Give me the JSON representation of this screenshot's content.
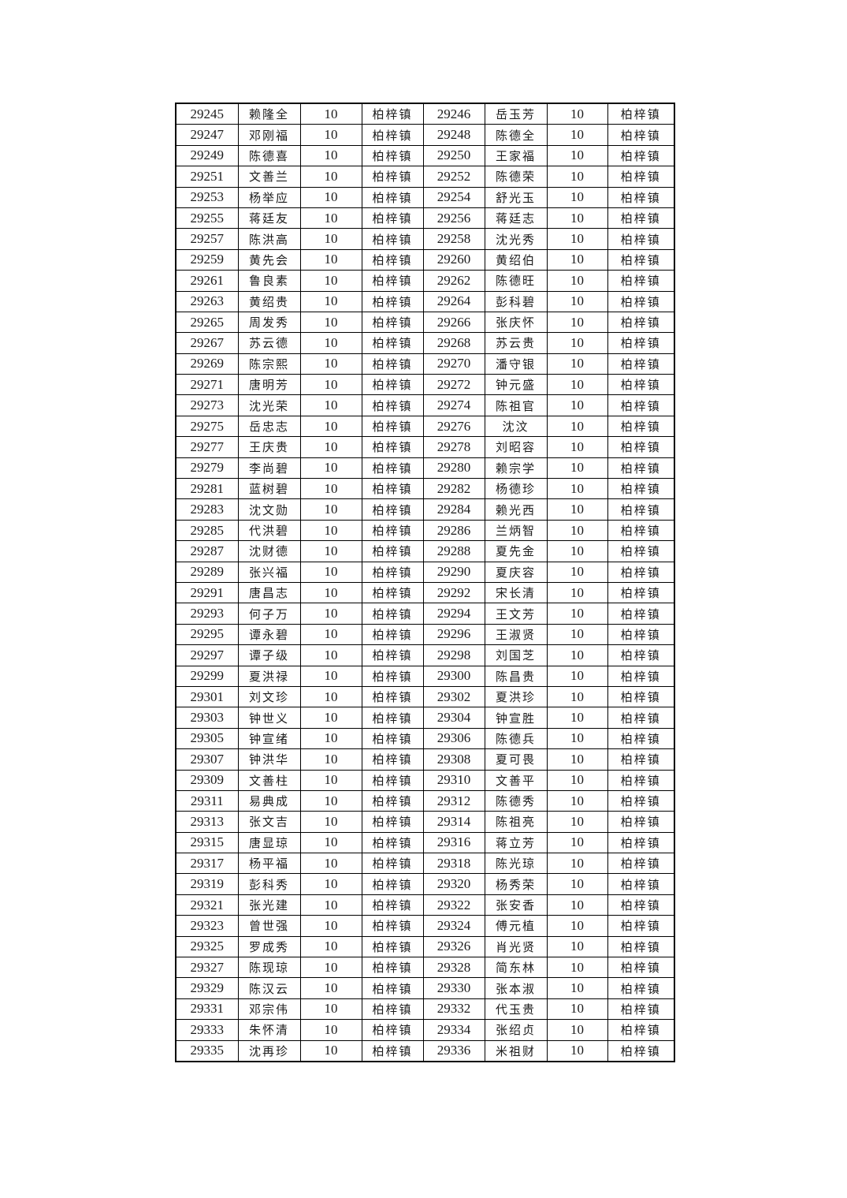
{
  "document": {
    "table": {
      "column_keys": [
        "id",
        "name",
        "amount",
        "town",
        "id",
        "name",
        "amount",
        "town"
      ],
      "rows": [
        [
          "29245",
          "赖隆全",
          "10",
          "柏梓镇",
          "29246",
          "岳玉芳",
          "10",
          "柏梓镇"
        ],
        [
          "29247",
          "邓刚福",
          "10",
          "柏梓镇",
          "29248",
          "陈德全",
          "10",
          "柏梓镇"
        ],
        [
          "29249",
          "陈德喜",
          "10",
          "柏梓镇",
          "29250",
          "王家福",
          "10",
          "柏梓镇"
        ],
        [
          "29251",
          "文善兰",
          "10",
          "柏梓镇",
          "29252",
          "陈德荣",
          "10",
          "柏梓镇"
        ],
        [
          "29253",
          "杨举应",
          "10",
          "柏梓镇",
          "29254",
          "舒光玉",
          "10",
          "柏梓镇"
        ],
        [
          "29255",
          "蒋廷友",
          "10",
          "柏梓镇",
          "29256",
          "蒋廷志",
          "10",
          "柏梓镇"
        ],
        [
          "29257",
          "陈洪高",
          "10",
          "柏梓镇",
          "29258",
          "沈光秀",
          "10",
          "柏梓镇"
        ],
        [
          "29259",
          "黄先会",
          "10",
          "柏梓镇",
          "29260",
          "黄绍伯",
          "10",
          "柏梓镇"
        ],
        [
          "29261",
          "鲁良素",
          "10",
          "柏梓镇",
          "29262",
          "陈德旺",
          "10",
          "柏梓镇"
        ],
        [
          "29263",
          "黄绍贵",
          "10",
          "柏梓镇",
          "29264",
          "彭科碧",
          "10",
          "柏梓镇"
        ],
        [
          "29265",
          "周发秀",
          "10",
          "柏梓镇",
          "29266",
          "张庆怀",
          "10",
          "柏梓镇"
        ],
        [
          "29267",
          "苏云德",
          "10",
          "柏梓镇",
          "29268",
          "苏云贵",
          "10",
          "柏梓镇"
        ],
        [
          "29269",
          "陈宗熙",
          "10",
          "柏梓镇",
          "29270",
          "潘守银",
          "10",
          "柏梓镇"
        ],
        [
          "29271",
          "唐明芳",
          "10",
          "柏梓镇",
          "29272",
          "钟元盛",
          "10",
          "柏梓镇"
        ],
        [
          "29273",
          "沈光荣",
          "10",
          "柏梓镇",
          "29274",
          "陈祖官",
          "10",
          "柏梓镇"
        ],
        [
          "29275",
          "岳忠志",
          "10",
          "柏梓镇",
          "29276",
          "沈汶",
          "10",
          "柏梓镇"
        ],
        [
          "29277",
          "王庆贵",
          "10",
          "柏梓镇",
          "29278",
          "刘昭容",
          "10",
          "柏梓镇"
        ],
        [
          "29279",
          "李尚碧",
          "10",
          "柏梓镇",
          "29280",
          "赖宗学",
          "10",
          "柏梓镇"
        ],
        [
          "29281",
          "蓝树碧",
          "10",
          "柏梓镇",
          "29282",
          "杨德珍",
          "10",
          "柏梓镇"
        ],
        [
          "29283",
          "沈文勋",
          "10",
          "柏梓镇",
          "29284",
          "赖光西",
          "10",
          "柏梓镇"
        ],
        [
          "29285",
          "代洪碧",
          "10",
          "柏梓镇",
          "29286",
          "兰炳智",
          "10",
          "柏梓镇"
        ],
        [
          "29287",
          "沈财德",
          "10",
          "柏梓镇",
          "29288",
          "夏先金",
          "10",
          "柏梓镇"
        ],
        [
          "29289",
          "张兴福",
          "10",
          "柏梓镇",
          "29290",
          "夏庆容",
          "10",
          "柏梓镇"
        ],
        [
          "29291",
          "唐昌志",
          "10",
          "柏梓镇",
          "29292",
          "宋长清",
          "10",
          "柏梓镇"
        ],
        [
          "29293",
          "何子万",
          "10",
          "柏梓镇",
          "29294",
          "王文芳",
          "10",
          "柏梓镇"
        ],
        [
          "29295",
          "谭永碧",
          "10",
          "柏梓镇",
          "29296",
          "王淑贤",
          "10",
          "柏梓镇"
        ],
        [
          "29297",
          "谭子级",
          "10",
          "柏梓镇",
          "29298",
          "刘国芝",
          "10",
          "柏梓镇"
        ],
        [
          "29299",
          "夏洪禄",
          "10",
          "柏梓镇",
          "29300",
          "陈昌贵",
          "10",
          "柏梓镇"
        ],
        [
          "29301",
          "刘文珍",
          "10",
          "柏梓镇",
          "29302",
          "夏洪珍",
          "10",
          "柏梓镇"
        ],
        [
          "29303",
          "钟世义",
          "10",
          "柏梓镇",
          "29304",
          "钟宣胜",
          "10",
          "柏梓镇"
        ],
        [
          "29305",
          "钟宣绪",
          "10",
          "柏梓镇",
          "29306",
          "陈德兵",
          "10",
          "柏梓镇"
        ],
        [
          "29307",
          "钟洪华",
          "10",
          "柏梓镇",
          "29308",
          "夏可畏",
          "10",
          "柏梓镇"
        ],
        [
          "29309",
          "文善柱",
          "10",
          "柏梓镇",
          "29310",
          "文善平",
          "10",
          "柏梓镇"
        ],
        [
          "29311",
          "易典成",
          "10",
          "柏梓镇",
          "29312",
          "陈德秀",
          "10",
          "柏梓镇"
        ],
        [
          "29313",
          "张文吉",
          "10",
          "柏梓镇",
          "29314",
          "陈祖亮",
          "10",
          "柏梓镇"
        ],
        [
          "29315",
          "唐显琼",
          "10",
          "柏梓镇",
          "29316",
          "蒋立芳",
          "10",
          "柏梓镇"
        ],
        [
          "29317",
          "杨平福",
          "10",
          "柏梓镇",
          "29318",
          "陈光琼",
          "10",
          "柏梓镇"
        ],
        [
          "29319",
          "彭科秀",
          "10",
          "柏梓镇",
          "29320",
          "杨秀荣",
          "10",
          "柏梓镇"
        ],
        [
          "29321",
          "张光建",
          "10",
          "柏梓镇",
          "29322",
          "张安香",
          "10",
          "柏梓镇"
        ],
        [
          "29323",
          "曾世强",
          "10",
          "柏梓镇",
          "29324",
          "傅元植",
          "10",
          "柏梓镇"
        ],
        [
          "29325",
          "罗成秀",
          "10",
          "柏梓镇",
          "29326",
          "肖光贤",
          "10",
          "柏梓镇"
        ],
        [
          "29327",
          "陈现琼",
          "10",
          "柏梓镇",
          "29328",
          "简东林",
          "10",
          "柏梓镇"
        ],
        [
          "29329",
          "陈汉云",
          "10",
          "柏梓镇",
          "29330",
          "张本淑",
          "10",
          "柏梓镇"
        ],
        [
          "29331",
          "邓宗伟",
          "10",
          "柏梓镇",
          "29332",
          "代玉贵",
          "10",
          "柏梓镇"
        ],
        [
          "29333",
          "朱怀清",
          "10",
          "柏梓镇",
          "29334",
          "张绍贞",
          "10",
          "柏梓镇"
        ],
        [
          "29335",
          "沈再珍",
          "10",
          "柏梓镇",
          "29336",
          "米祖财",
          "10",
          "柏梓镇"
        ]
      ]
    }
  }
}
